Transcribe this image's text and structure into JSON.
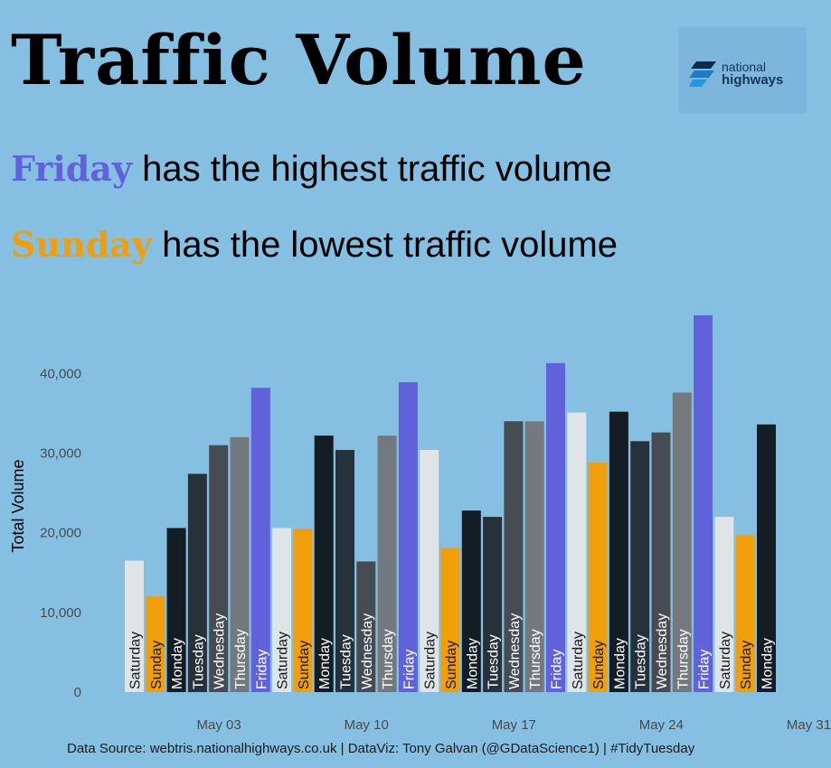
{
  "header": {
    "title": "Traffic Volume",
    "logo_line1": "national",
    "logo_line2": "highways",
    "highlight_max_day": "Friday",
    "highlight_max_text": " has the highest traffic volume",
    "highlight_min_day": "Sunday",
    "highlight_min_text": " has the lowest traffic volume"
  },
  "footer": {
    "text": "Data Source: webtris.nationalhighways.co.uk  |  DataViz: Tony Galvan (@GDataScience1)  |  #TidyTuesday"
  },
  "colors": {
    "background": "#85c0e3",
    "Saturday": "#dfe4e6",
    "Sunday": "#f09e0a",
    "Monday": "#141c24",
    "Tuesday": "#27313a",
    "Wednesday": "#474c53",
    "Thursday": "#73797e",
    "Friday": "#6161dc",
    "max_highlight": "#6161dc",
    "min_highlight": "#f09e0a"
  },
  "chart_data": {
    "type": "bar",
    "ylabel": "Total Volume",
    "xlabel": "",
    "ylim": [
      0,
      48000
    ],
    "yticks": [
      0,
      10000,
      20000,
      30000,
      40000
    ],
    "ytick_labels": [
      "0",
      "10,000",
      "20,000",
      "30,000",
      "40,000"
    ],
    "xtick_labels": [
      {
        "label": "May 03",
        "index": 2
      },
      {
        "label": "May 10",
        "index": 9
      },
      {
        "label": "May 17",
        "index": 16
      },
      {
        "label": "May 24",
        "index": 23
      },
      {
        "label": "May 31",
        "index": 30
      }
    ],
    "grid": false,
    "legend": "none",
    "categories": [
      "Saturday",
      "Sunday",
      "Monday",
      "Tuesday",
      "Wednesday",
      "Thursday",
      "Friday",
      "Saturday",
      "Sunday",
      "Monday",
      "Tuesday",
      "Wednesday",
      "Thursday",
      "Friday",
      "Saturday",
      "Sunday",
      "Monday",
      "Tuesday",
      "Wednesday",
      "Thursday",
      "Friday",
      "Saturday",
      "Sunday",
      "Monday",
      "Tuesday",
      "Wednesday",
      "Thursday",
      "Friday",
      "Saturday",
      "Sunday",
      "Monday"
    ],
    "values": [
      16500,
      12000,
      20600,
      27400,
      31000,
      32000,
      38200,
      20600,
      20500,
      32200,
      30400,
      16400,
      32200,
      38900,
      30400,
      18100,
      22800,
      22000,
      34000,
      34000,
      41300,
      35100,
      28800,
      35200,
      31500,
      32600,
      37600,
      47300,
      22000,
      19700,
      33600
    ]
  }
}
